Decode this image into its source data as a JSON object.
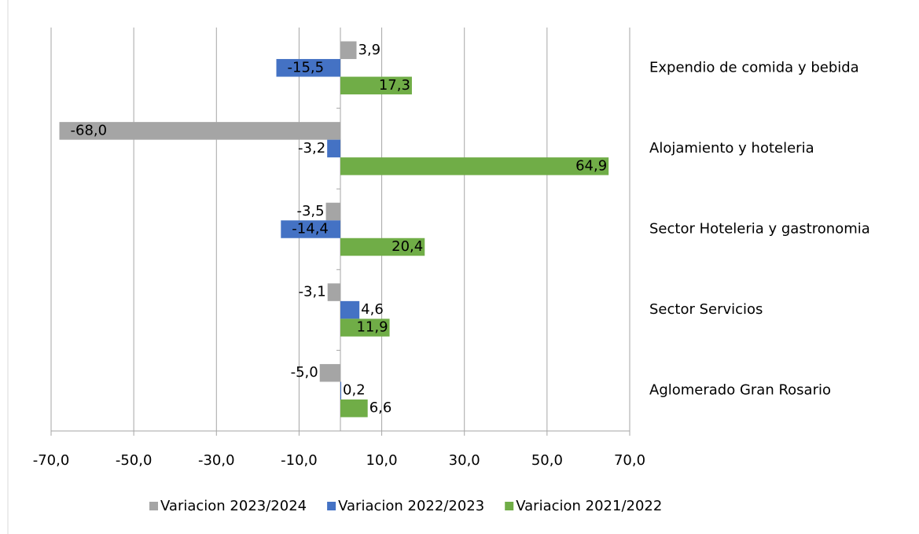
{
  "chart_data": {
    "type": "bar",
    "orientation": "horizontal",
    "categories": [
      "Expendio de comida y bebida",
      "Alojamiento y hoteleria",
      "Sector Hoteleria y gastronomia",
      "Sector Servicios",
      "Aglomerado Gran Rosario"
    ],
    "series": [
      {
        "name": "Variacion 2023/2024",
        "color": "#a5a5a5",
        "values": [
          3.9,
          -68.0,
          -3.5,
          -3.1,
          -5.0
        ],
        "value_labels": [
          "3,9",
          "-68,0",
          "-3,5",
          "-3,1",
          "-5,0"
        ]
      },
      {
        "name": "Variacion 2022/2023",
        "color": "#4472c4",
        "values": [
          -15.5,
          -3.2,
          -14.4,
          4.6,
          0.2
        ],
        "value_labels": [
          "-15,5",
          "-3,2",
          "-14,4",
          "4,6",
          "0,2"
        ]
      },
      {
        "name": "Variacion 2021/2022",
        "color": "#70ad47",
        "values": [
          17.3,
          64.9,
          20.4,
          11.9,
          6.6
        ],
        "value_labels": [
          "17,3",
          "64,9",
          "20,4",
          "11,9",
          "6,6"
        ]
      }
    ],
    "xlim": [
      -70,
      70
    ],
    "xticks": [
      {
        "value": -70,
        "label": "-70,0"
      },
      {
        "value": -50,
        "label": "-50,0"
      },
      {
        "value": -30,
        "label": "-30,0"
      },
      {
        "value": -10,
        "label": "-10,0"
      },
      {
        "value": 10,
        "label": "10,0"
      },
      {
        "value": 30,
        "label": "30,0"
      },
      {
        "value": 50,
        "label": "50,0"
      },
      {
        "value": 70,
        "label": "70,0"
      }
    ],
    "grid": true,
    "legend": "bottom"
  }
}
